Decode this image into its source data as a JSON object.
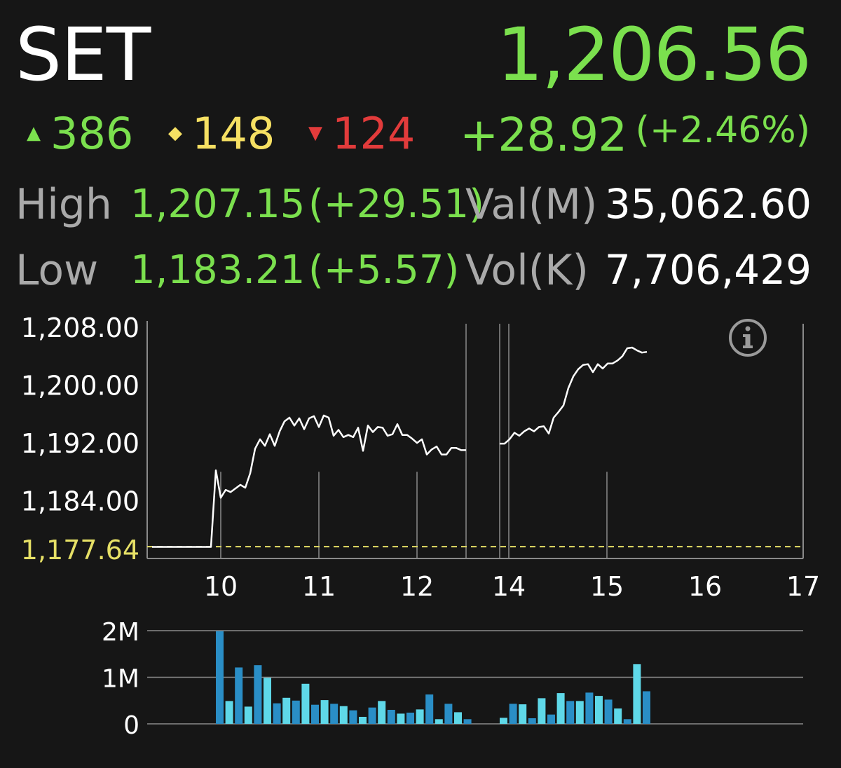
{
  "header": {
    "index_name": "SET",
    "index_value": "1,206.56"
  },
  "breadth": {
    "up": "386",
    "unchanged": "148",
    "down": "124",
    "up_symbol": "▲",
    "unchanged_symbol": "◆",
    "down_symbol": "▼"
  },
  "change": {
    "points": "+28.92",
    "percent": "(+2.46%)"
  },
  "stats": {
    "high_label": "High",
    "high_value": "1,207.15",
    "high_change": "(+29.51)",
    "low_label": "Low",
    "low_value": "1,183.21",
    "low_change": "(+5.57)",
    "val_label": "Val(M)",
    "val_value": "35,062.60",
    "vol_label": "Vol(K)",
    "vol_value": "7,706,429"
  },
  "info_icon": "info-icon",
  "colors": {
    "up": "#7be04e",
    "unchanged": "#f6e063",
    "down": "#e23b3b",
    "volume_dark": "#2a8ec6",
    "volume_light": "#5fd8e8",
    "previous_close_line": "#e6e066"
  },
  "chart_data": [
    {
      "type": "line",
      "y_ticks": [
        "1,208.00",
        "1,200.00",
        "1,192.00",
        "1,184.00"
      ],
      "y_tick_values": [
        1208,
        1200,
        1192,
        1184
      ],
      "reference_label": "1,177.64",
      "reference_value": 1177.64,
      "x_ticks": [
        "10",
        "11",
        "12",
        "14",
        "15",
        "16",
        "17"
      ],
      "ylim": [
        1176,
        1208.5
      ],
      "grid": "vertical lines at 10, 11, 12, 12:30, 14, 15",
      "sessions": [
        {
          "x": [
            9.3,
            9.9,
            9.95,
            10.0,
            10.05,
            10.1,
            10.2,
            10.25,
            10.3,
            10.35,
            10.4,
            10.45,
            10.5,
            10.55,
            10.6,
            10.65,
            10.7,
            10.75,
            10.8,
            10.85,
            10.9,
            10.95,
            11.0,
            11.05,
            11.1,
            11.15,
            11.2,
            11.25,
            11.3,
            11.35,
            11.4,
            11.45,
            11.5,
            11.55,
            11.6,
            11.65,
            11.7,
            11.75,
            11.8,
            11.85,
            11.9,
            11.95,
            12.0,
            12.05,
            12.1,
            12.15,
            12.2,
            12.25,
            12.3,
            12.35,
            12.4,
            12.45,
            12.5
          ],
          "y": [
            1177.6,
            1177.6,
            1188.2,
            1184.4,
            1185.5,
            1185.2,
            1186.2,
            1185.8,
            1187.8,
            1191.2,
            1192.5,
            1191.6,
            1193.2,
            1191.6,
            1193.6,
            1195.0,
            1195.5,
            1194.4,
            1195.4,
            1193.9,
            1195.4,
            1195.7,
            1194.2,
            1195.8,
            1195.5,
            1193.0,
            1193.8,
            1192.8,
            1193.1,
            1192.8,
            1194.1,
            1190.9,
            1194.4,
            1193.5,
            1194.2,
            1194.1,
            1193.0,
            1193.2,
            1194.6,
            1193.1,
            1193.1,
            1192.6,
            1192.0,
            1192.5,
            1190.4,
            1191.1,
            1191.5,
            1190.4,
            1190.4,
            1191.3,
            1191.3,
            1191.0,
            1191.0
          ]
        },
        {
          "x": [
            14.0,
            14.05,
            14.1,
            14.15,
            14.2,
            14.25,
            14.3,
            14.35,
            14.4,
            14.45,
            14.5,
            14.55,
            14.6,
            14.65,
            14.7,
            14.75,
            14.8,
            14.85,
            14.9,
            14.95,
            15.0,
            15.05,
            15.1,
            15.15,
            15.2,
            15.25,
            15.3,
            15.35,
            15.4,
            15.45,
            15.5
          ],
          "y": [
            1191.9,
            1191.9,
            1192.5,
            1193.4,
            1193.0,
            1193.6,
            1194.0,
            1193.6,
            1194.2,
            1194.3,
            1193.3,
            1195.5,
            1196.3,
            1197.2,
            1199.6,
            1201.2,
            1202.2,
            1202.8,
            1202.9,
            1201.8,
            1202.9,
            1202.3,
            1203.0,
            1203.0,
            1203.4,
            1204.0,
            1205.1,
            1205.2,
            1204.8,
            1204.5,
            1204.6
          ]
        }
      ]
    },
    {
      "type": "bar",
      "y_ticks": [
        "2M",
        "1M",
        "0"
      ],
      "y_tick_values": [
        2000000,
        1000000,
        0
      ],
      "ylim": [
        0,
        2000000
      ],
      "x": [
        9.95,
        10.05,
        10.15,
        10.25,
        10.35,
        10.45,
        10.55,
        10.65,
        10.75,
        10.85,
        10.95,
        11.05,
        11.15,
        11.25,
        11.35,
        11.45,
        11.55,
        11.65,
        11.75,
        11.85,
        11.95,
        12.05,
        12.15,
        12.25,
        12.35,
        12.45,
        12.55,
        14.0,
        14.1,
        14.2,
        14.3,
        14.4,
        14.5,
        14.6,
        14.7,
        14.8,
        14.9,
        15.0,
        15.1,
        15.2,
        15.3,
        15.4,
        15.5,
        15.6
      ],
      "values": [
        1990000,
        490000,
        1210000,
        370000,
        1260000,
        990000,
        440000,
        560000,
        500000,
        860000,
        410000,
        510000,
        430000,
        380000,
        290000,
        150000,
        350000,
        490000,
        300000,
        220000,
        240000,
        310000,
        630000,
        100000,
        430000,
        250000,
        100000,
        130000,
        430000,
        420000,
        120000,
        550000,
        200000,
        660000,
        490000,
        490000,
        670000,
        600000,
        520000,
        330000,
        100000,
        1280000,
        700000,
        0
      ]
    }
  ]
}
